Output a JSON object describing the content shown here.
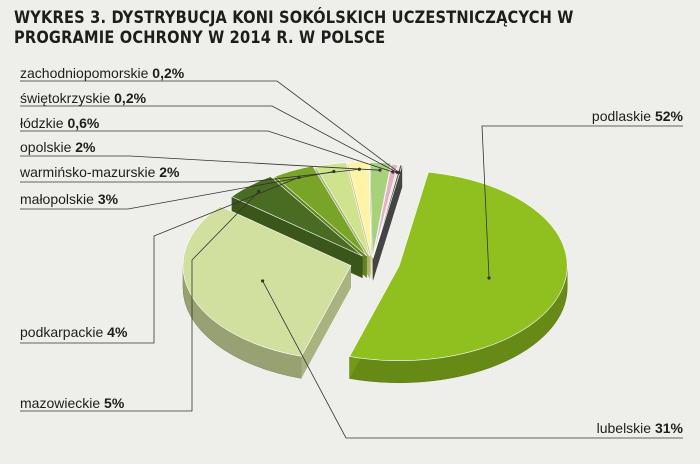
{
  "chart_data": {
    "type": "pie",
    "style": "3d-exploded",
    "title": "WYKRES 3. DYSTRYBUCJA KONI SOKÓLSKICH UCZESTNICZĄCYCH W PROGRAMIE OCHRONY W 2014 R. W POLSCE",
    "unit": "%",
    "legend": "none (callout labels)",
    "slices": [
      {
        "label": "podlaskie",
        "value": 52,
        "display": "52%",
        "color": "#8fc01f"
      },
      {
        "label": "lubelskie",
        "value": 31,
        "display": "31%",
        "color": "#d2e09f"
      },
      {
        "label": "mazowieckie",
        "value": 5,
        "display": "5%",
        "color": "#4a6b22"
      },
      {
        "label": "podkarpackie",
        "value": 4,
        "display": "4%",
        "color": "#78a428"
      },
      {
        "label": "małopolskie",
        "value": 3,
        "display": "3%",
        "color": "#cfe38e"
      },
      {
        "label": "warmińsko-mazurskie",
        "value": 2,
        "display": "2%",
        "color": "#fff3a8"
      },
      {
        "label": "opolskie",
        "value": 2,
        "display": "2%",
        "color": "#a8d17c"
      },
      {
        "label": "łódzkie",
        "value": 0.6,
        "display": "0,6%",
        "color": "#e4b0c8"
      },
      {
        "label": "świętokrzyskie",
        "value": 0.2,
        "display": "0,2%",
        "color": "#e8e0b8"
      },
      {
        "label": "zachodniopomorskie",
        "value": 0.2,
        "display": "0,2%",
        "color": "#555555"
      }
    ]
  }
}
